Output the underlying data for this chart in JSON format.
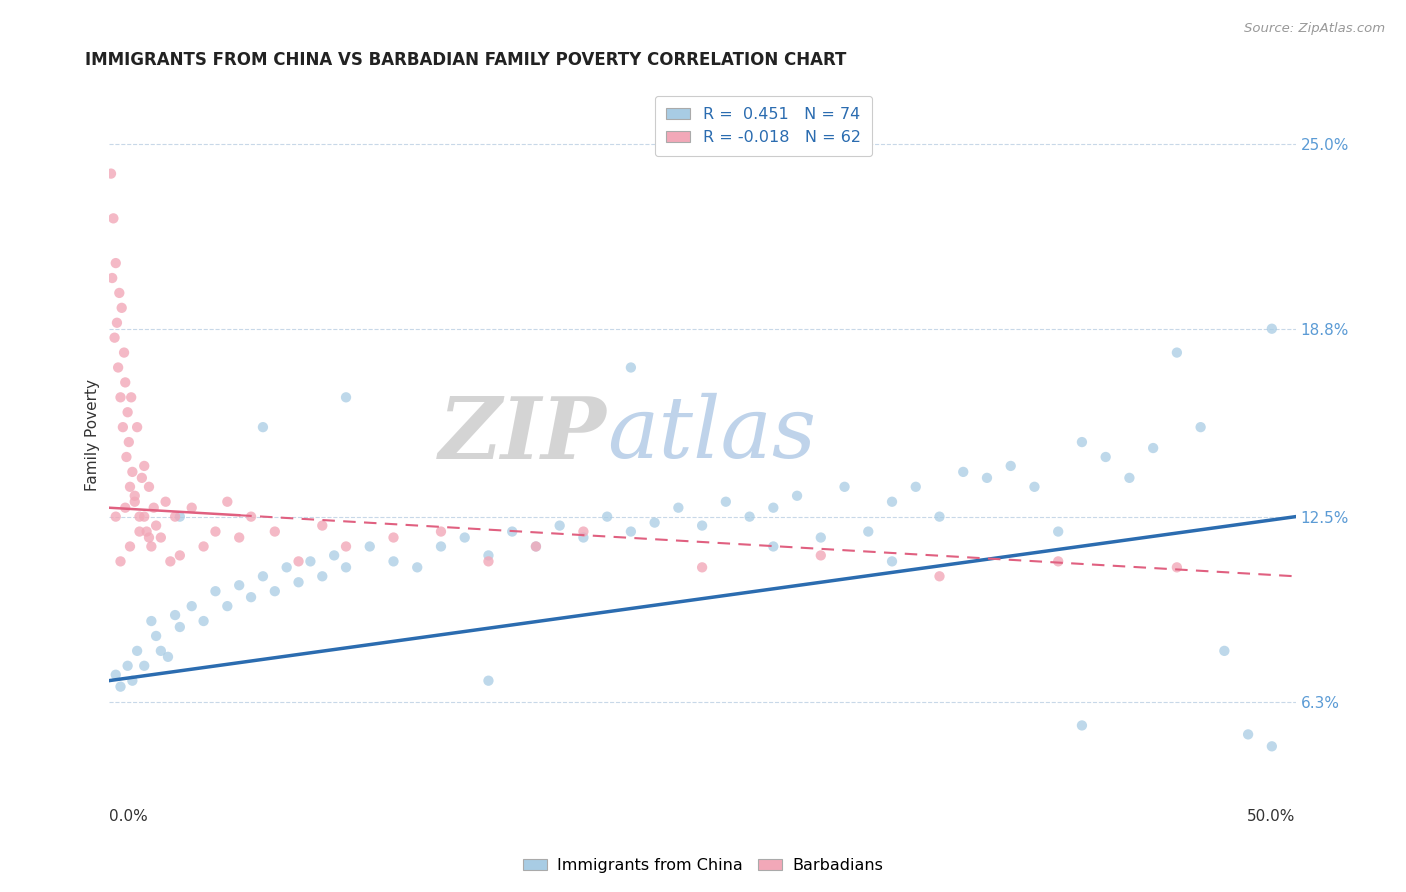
{
  "title": "IMMIGRANTS FROM CHINA VS BARBADIAN FAMILY POVERTY CORRELATION CHART",
  "source": "Source: ZipAtlas.com",
  "ylabel": "Family Poverty",
  "yticks": [
    6.3,
    12.5,
    18.8,
    25.0
  ],
  "ytick_labels": [
    "6.3%",
    "12.5%",
    "18.8%",
    "25.0%"
  ],
  "xlim": [
    0.0,
    50.0
  ],
  "ylim": [
    3.5,
    27.0
  ],
  "blue_color": "#a8cce4",
  "pink_color": "#f2a8b8",
  "blue_line_color": "#2b6cb0",
  "pink_line_color": "#e06080",
  "watermark_zip": "ZIP",
  "watermark_atlas": "atlas",
  "blue_x": [
    0.3,
    0.5,
    0.8,
    1.0,
    1.2,
    1.5,
    1.8,
    2.0,
    2.2,
    2.5,
    2.8,
    3.0,
    3.5,
    4.0,
    4.5,
    5.0,
    5.5,
    6.0,
    6.5,
    7.0,
    7.5,
    8.0,
    8.5,
    9.0,
    9.5,
    10.0,
    11.0,
    12.0,
    13.0,
    14.0,
    15.0,
    16.0,
    17.0,
    18.0,
    19.0,
    20.0,
    21.0,
    22.0,
    23.0,
    24.0,
    25.0,
    26.0,
    27.0,
    28.0,
    29.0,
    30.0,
    31.0,
    32.0,
    33.0,
    34.0,
    35.0,
    36.0,
    37.0,
    38.0,
    39.0,
    40.0,
    41.0,
    42.0,
    43.0,
    44.0,
    45.0,
    46.0,
    47.0,
    48.0,
    49.0,
    3.0,
    6.5,
    10.0,
    16.0,
    22.0,
    28.0,
    33.0,
    41.0,
    49.0
  ],
  "blue_y": [
    7.2,
    6.8,
    7.5,
    7.0,
    8.0,
    7.5,
    9.0,
    8.5,
    8.0,
    7.8,
    9.2,
    8.8,
    9.5,
    9.0,
    10.0,
    9.5,
    10.2,
    9.8,
    10.5,
    10.0,
    10.8,
    10.3,
    11.0,
    10.5,
    11.2,
    10.8,
    11.5,
    11.0,
    10.8,
    11.5,
    11.8,
    11.2,
    12.0,
    11.5,
    12.2,
    11.8,
    12.5,
    12.0,
    12.3,
    12.8,
    12.2,
    13.0,
    12.5,
    12.8,
    13.2,
    11.8,
    13.5,
    12.0,
    13.0,
    13.5,
    12.5,
    14.0,
    13.8,
    14.2,
    13.5,
    12.0,
    15.0,
    14.5,
    13.8,
    14.8,
    18.0,
    15.5,
    8.0,
    5.2,
    4.8,
    12.5,
    15.5,
    16.5,
    7.0,
    17.5,
    11.5,
    11.0,
    5.5,
    18.8
  ],
  "pink_x": [
    0.1,
    0.15,
    0.2,
    0.25,
    0.3,
    0.35,
    0.4,
    0.45,
    0.5,
    0.55,
    0.6,
    0.65,
    0.7,
    0.75,
    0.8,
    0.85,
    0.9,
    0.95,
    1.0,
    1.1,
    1.2,
    1.3,
    1.4,
    1.5,
    1.6,
    1.7,
    1.8,
    1.9,
    2.0,
    2.2,
    2.4,
    2.6,
    2.8,
    3.0,
    3.5,
    4.0,
    4.5,
    5.0,
    5.5,
    6.0,
    7.0,
    8.0,
    9.0,
    10.0,
    12.0,
    14.0,
    16.0,
    18.0,
    20.0,
    25.0,
    30.0,
    35.0,
    40.0,
    45.0,
    0.3,
    0.5,
    0.7,
    0.9,
    1.1,
    1.3,
    1.5,
    1.7
  ],
  "pink_y": [
    24.0,
    20.5,
    22.5,
    18.5,
    21.0,
    19.0,
    17.5,
    20.0,
    16.5,
    19.5,
    15.5,
    18.0,
    17.0,
    14.5,
    16.0,
    15.0,
    13.5,
    16.5,
    14.0,
    13.0,
    15.5,
    12.5,
    13.8,
    14.2,
    12.0,
    13.5,
    11.5,
    12.8,
    12.2,
    11.8,
    13.0,
    11.0,
    12.5,
    11.2,
    12.8,
    11.5,
    12.0,
    13.0,
    11.8,
    12.5,
    12.0,
    11.0,
    12.2,
    11.5,
    11.8,
    12.0,
    11.0,
    11.5,
    12.0,
    10.8,
    11.2,
    10.5,
    11.0,
    10.8,
    12.5,
    11.0,
    12.8,
    11.5,
    13.2,
    12.0,
    12.5,
    11.8
  ]
}
